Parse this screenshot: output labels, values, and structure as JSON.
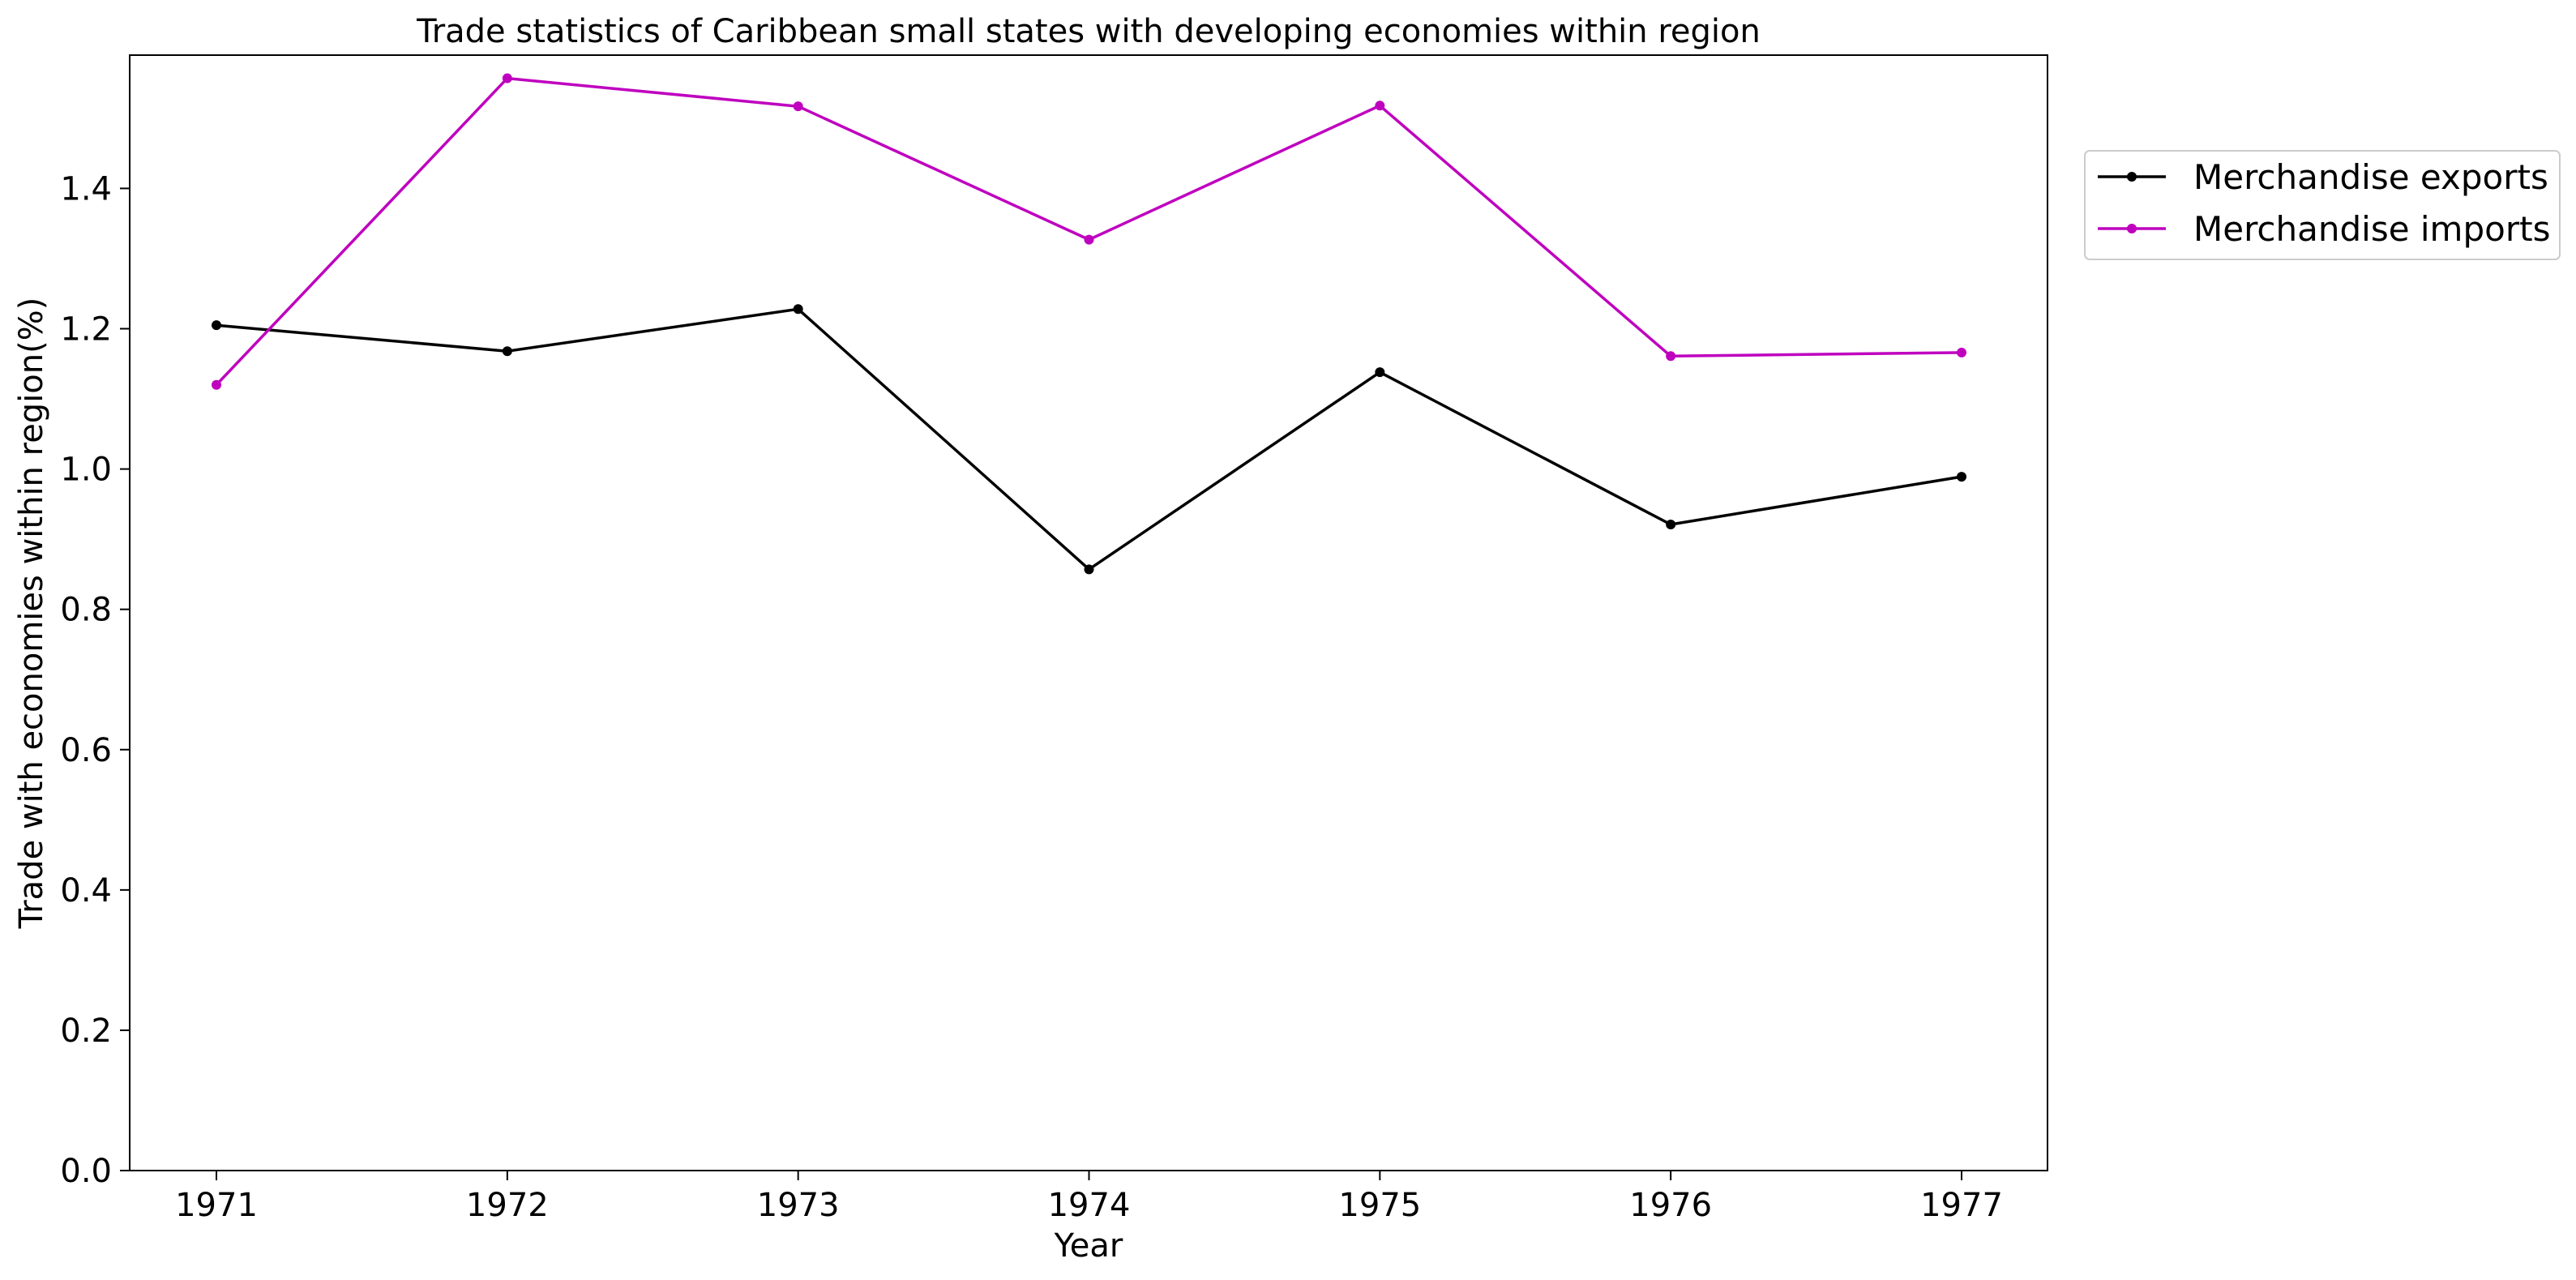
{
  "chart_data": {
    "type": "line",
    "title": "Trade statistics of Caribbean small states with developing economies within region",
    "xlabel": "Year",
    "ylabel": "Trade with economies within region(%)",
    "x": [
      "1971",
      "1972",
      "1973",
      "1974",
      "1975",
      "1976",
      "1977"
    ],
    "ylim": [
      0,
      1.59
    ],
    "yticks": [
      "0.0",
      "0.2",
      "0.4",
      "0.6",
      "0.8",
      "1.0",
      "1.2",
      "1.4"
    ],
    "grid": false,
    "legend_position": "outside-top-right",
    "series": [
      {
        "name": "Merchandise exports",
        "color": "#000000",
        "values": [
          1.205,
          1.168,
          1.228,
          0.857,
          1.138,
          0.921,
          0.989
        ]
      },
      {
        "name": "Merchandise imports",
        "color": "#bf00bf",
        "values": [
          1.12,
          1.557,
          1.517,
          1.327,
          1.518,
          1.161,
          1.166
        ]
      }
    ]
  }
}
